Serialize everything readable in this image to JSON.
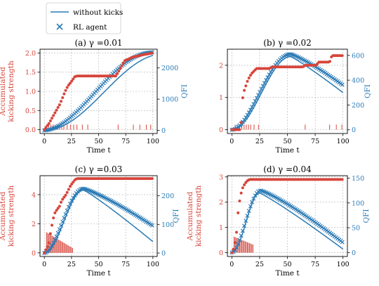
{
  "legend": {
    "items": [
      {
        "label": "without kicks",
        "marker": "line",
        "color": "#2a7ab5"
      },
      {
        "label": "RL agent",
        "marker": "x",
        "color": "#2a7ab5"
      }
    ],
    "placement": "top-left"
  },
  "colors": {
    "left_axis": "#d6453b",
    "right_axis": "#2a7ab5",
    "baseline_line": "#2a7ab5",
    "agent_marker": "#2a7ab5",
    "kick_marker": "#d6453b"
  },
  "chart_data": [
    {
      "type": "line",
      "title": "(a) γ =0.01",
      "xlabel": "Time t",
      "ylabel_left": "Accumulated\nkicking strength",
      "ylabel_right": "QFI",
      "xlim": [
        -4,
        104
      ],
      "xticks": [
        0,
        25,
        50,
        75,
        100
      ],
      "ylim_left": [
        -0.1,
        2.1
      ],
      "yticks_left": [
        0.0,
        0.5,
        1.0,
        1.5,
        2.0
      ],
      "ytick_labels_left": [
        "0.0",
        "0.5",
        "1.0",
        "1.5",
        "2.0"
      ],
      "ylim_right": [
        -100,
        2600
      ],
      "yticks_right": [
        0,
        1000,
        2000
      ],
      "qfi_peak": 2500,
      "qfi_peak_t": 100,
      "baseline_final": 2380,
      "kick_spikes_t": [
        2,
        4,
        6,
        8,
        10,
        12,
        14,
        16,
        18,
        21,
        24,
        27,
        30,
        35,
        40,
        68,
        82,
        88,
        94,
        98
      ],
      "series": [
        {
          "name": "Accumulated kicking strength (RL agent)",
          "axis": "left",
          "points": [
            [
              0,
              0
            ],
            [
              2,
              0.08
            ],
            [
              4,
              0.15
            ],
            [
              6,
              0.25
            ],
            [
              8,
              0.35
            ],
            [
              10,
              0.45
            ],
            [
              12,
              0.55
            ],
            [
              14,
              0.65
            ],
            [
              16,
              0.78
            ],
            [
              18,
              0.92
            ],
            [
              20,
              1.05
            ],
            [
              22,
              1.15
            ],
            [
              24,
              1.22
            ],
            [
              26,
              1.3
            ],
            [
              28,
              1.38
            ],
            [
              30,
              1.4
            ],
            [
              66,
              1.4
            ],
            [
              68,
              1.5
            ],
            [
              70,
              1.6
            ],
            [
              72,
              1.7
            ],
            [
              74,
              1.8
            ],
            [
              78,
              1.85
            ],
            [
              82,
              1.9
            ],
            [
              86,
              1.92
            ],
            [
              90,
              1.95
            ],
            [
              94,
              1.97
            ],
            [
              96,
              1.98
            ],
            [
              100,
              2.0
            ]
          ]
        }
      ]
    },
    {
      "type": "line",
      "title": "(b) γ =0.02",
      "xlabel": "Time t",
      "ylabel_left": "",
      "ylabel_right": "QFI",
      "xlim": [
        -4,
        104
      ],
      "xticks": [
        0,
        25,
        50,
        75,
        100
      ],
      "ylim_left": [
        -0.12,
        2.5
      ],
      "yticks_left": [
        0,
        1,
        2
      ],
      "ytick_labels_left": [
        "0",
        "1",
        "2"
      ],
      "ylim_right": [
        -30,
        650
      ],
      "yticks_right": [
        0,
        200,
        400,
        600
      ],
      "qfi_peak": 610,
      "qfi_peak_t": 53,
      "baseline_final": 300,
      "kick_spikes_t": [
        3,
        5,
        7,
        9,
        11,
        13,
        15,
        17,
        20,
        24,
        66,
        88,
        94,
        99
      ],
      "series": [
        {
          "name": "Accumulated kicking strength (RL agent)",
          "axis": "left",
          "points": [
            [
              0,
              0
            ],
            [
              8,
              0
            ],
            [
              10,
              1.1
            ],
            [
              12,
              1.3
            ],
            [
              14,
              1.5
            ],
            [
              16,
              1.65
            ],
            [
              18,
              1.75
            ],
            [
              20,
              1.82
            ],
            [
              22,
              1.9
            ],
            [
              34,
              1.9
            ],
            [
              36,
              1.95
            ],
            [
              64,
              1.95
            ],
            [
              66,
              2.0
            ],
            [
              76,
              2.0
            ],
            [
              78,
              2.1
            ],
            [
              88,
              2.1
            ],
            [
              90,
              2.3
            ],
            [
              100,
              2.3
            ]
          ]
        }
      ]
    },
    {
      "type": "line",
      "title": "(c) γ =0.03",
      "xlabel": "Time t",
      "ylabel_left": "Accumulated\nkicking strength",
      "ylabel_right": "QFI",
      "xlim": [
        -4,
        104
      ],
      "xticks": [
        0,
        25,
        50,
        75,
        100
      ],
      "ylim_left": [
        -0.25,
        5.3
      ],
      "yticks_left": [
        0,
        2,
        4
      ],
      "ytick_labels_left": [
        "0",
        "2",
        "4"
      ],
      "ylim_right": [
        -12,
        270
      ],
      "yticks_right": [
        0,
        100,
        200
      ],
      "qfi_peak": 225,
      "qfi_peak_t": 36,
      "baseline_final": 40,
      "kick_spikes_t": [
        2,
        3,
        4,
        5,
        6,
        7,
        8,
        9,
        10,
        11,
        12,
        13,
        14,
        15,
        16,
        17,
        18,
        19,
        20,
        21,
        22,
        23,
        24,
        25,
        26
      ],
      "series": [
        {
          "name": "Accumulated kicking strength (RL agent)",
          "axis": "left",
          "points": [
            [
              0,
              0
            ],
            [
              4,
              0.6
            ],
            [
              6,
              1.5
            ],
            [
              8,
              2.3
            ],
            [
              10,
              2.8
            ],
            [
              14,
              3.2
            ],
            [
              16,
              3.6
            ],
            [
              18,
              3.8
            ],
            [
              20,
              4.0
            ],
            [
              22,
              4.3
            ],
            [
              24,
              4.6
            ],
            [
              26,
              4.8
            ],
            [
              28,
              5.0
            ],
            [
              30,
              5.1
            ],
            [
              100,
              5.1
            ]
          ]
        }
      ]
    },
    {
      "type": "line",
      "title": "(d) γ =0.04",
      "xlabel": "Time t",
      "ylabel_left": "Accumulated\nkicking strength",
      "ylabel_right": "QFI",
      "xlim": [
        -4,
        104
      ],
      "xticks": [
        0,
        25,
        50,
        75,
        100
      ],
      "ylim_left": [
        -0.15,
        3.05
      ],
      "yticks_left": [
        0,
        1,
        2,
        3
      ],
      "ytick_labels_left": [
        "0",
        "1",
        "2",
        "3"
      ],
      "ylim_right": [
        -8,
        155
      ],
      "yticks_right": [
        0,
        50,
        100,
        150
      ],
      "qfi_peak": 125,
      "qfi_peak_t": 26,
      "baseline_final": 7,
      "kick_spikes_t": [
        2,
        3,
        4,
        5,
        6,
        7,
        8,
        9,
        10,
        11,
        12,
        13,
        14,
        15,
        16,
        17,
        18,
        19
      ],
      "series": [
        {
          "name": "Accumulated kicking strength (RL agent)",
          "axis": "left",
          "points": [
            [
              0,
              0
            ],
            [
              2,
              0.2
            ],
            [
              4,
              0.7
            ],
            [
              6,
              1.8
            ],
            [
              8,
              2.3
            ],
            [
              10,
              2.6
            ],
            [
              12,
              2.75
            ],
            [
              14,
              2.85
            ],
            [
              16,
              2.9
            ],
            [
              100,
              2.9
            ]
          ]
        }
      ]
    }
  ]
}
